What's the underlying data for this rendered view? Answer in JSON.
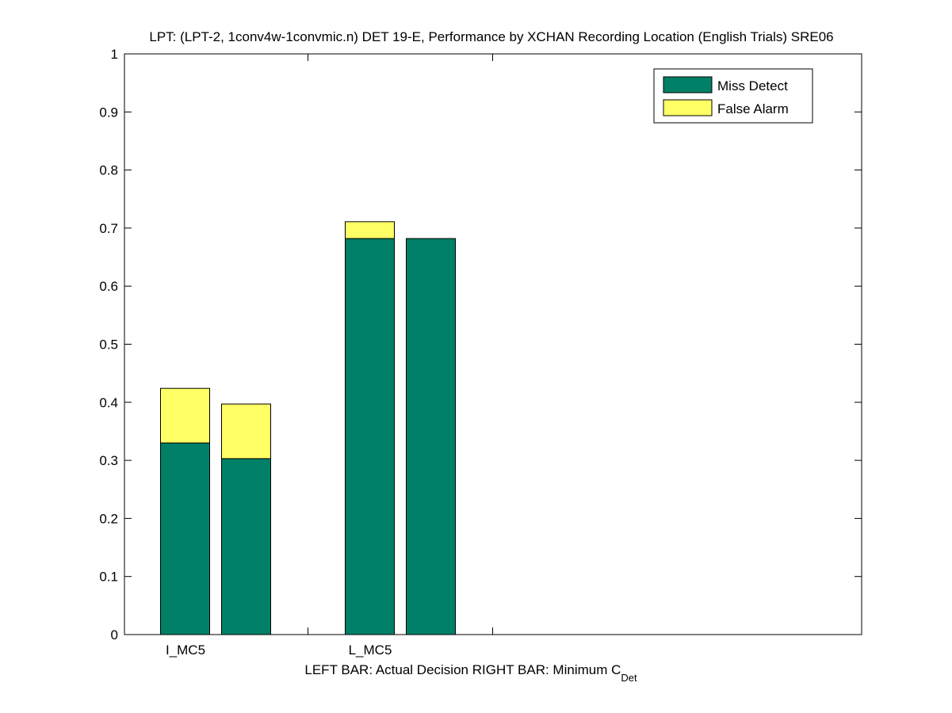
{
  "chart_data": {
    "type": "bar",
    "stacked": true,
    "title": "LPT: (LPT-2, 1conv4w-1convmic.n) DET 19-E,  Performance by XCHAN Recording Location (English Trials) SRE06",
    "xlabel": {
      "main": "LEFT BAR: Actual Decision     RIGHT BAR: Minimum C",
      "subscript": "Det"
    },
    "ylabel": "",
    "ylim": [
      0,
      1
    ],
    "yticks": [
      "0",
      "0.1",
      "0.2",
      "0.3",
      "0.4",
      "0.5",
      "0.6",
      "0.7",
      "0.8",
      "0.9",
      "1"
    ],
    "groups": [
      "I_MC5",
      "L_MC5"
    ],
    "bars": [
      {
        "group": "I_MC5",
        "kind": "Actual Decision",
        "miss": 0.33,
        "false_alarm": 0.094
      },
      {
        "group": "I_MC5",
        "kind": "Minimum C_Det",
        "miss": 0.303,
        "false_alarm": 0.094
      },
      {
        "group": "L_MC5",
        "kind": "Actual Decision",
        "miss": 0.682,
        "false_alarm": 0.029
      },
      {
        "group": "L_MC5",
        "kind": "Minimum C_Det",
        "miss": 0.682,
        "false_alarm": 0.0
      }
    ],
    "series": [
      {
        "name": "Miss Detect",
        "color": "#008066"
      },
      {
        "name": "False Alarm",
        "color": "#ffff66"
      }
    ],
    "legend_position": "top-right",
    "grid": false
  }
}
